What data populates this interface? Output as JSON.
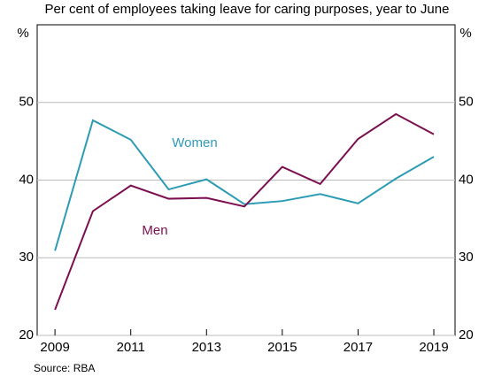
{
  "chart_data": {
    "type": "line",
    "subtitle": "Per cent of employees taking leave for caring purposes, year to June",
    "y_unit_left": "%",
    "y_unit_right": "%",
    "source": "Source:   RBA",
    "x": [
      2009,
      2010,
      2011,
      2012,
      2013,
      2014,
      2015,
      2016,
      2017,
      2018,
      2019
    ],
    "series": [
      {
        "name": "Women",
        "color": "#2e9bb5",
        "values": [
          30.9,
          47.7,
          45.2,
          38.8,
          40.1,
          36.9,
          37.3,
          38.2,
          37.0,
          40.2,
          43.0
        ]
      },
      {
        "name": "Men",
        "color": "#7b0f4f",
        "values": [
          23.3,
          36.0,
          39.3,
          37.6,
          37.7,
          36.6,
          41.7,
          39.5,
          45.3,
          48.5,
          45.9
        ]
      }
    ],
    "xlim": [
      2008.53,
      2019.56
    ],
    "xticks": [
      2009,
      2011,
      2013,
      2015,
      2017,
      2019
    ],
    "ylim": [
      20,
      60
    ],
    "yticks": [
      20,
      30,
      40,
      50
    ],
    "grid": true
  }
}
